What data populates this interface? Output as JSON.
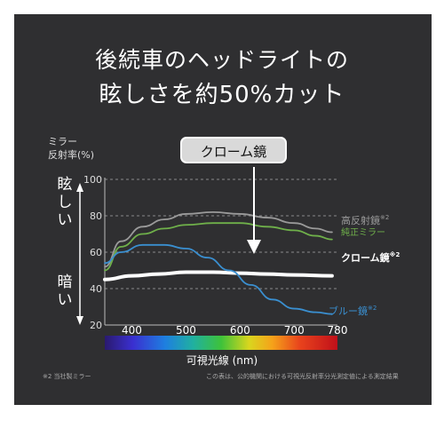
{
  "headline": {
    "line1": "後続車のヘッドライトの",
    "line2": "眩しさを約50%カット"
  },
  "side_labels": {
    "top": "眩しい",
    "bottom": "暗い"
  },
  "callout": "クローム鏡",
  "footnotes": {
    "left": "※2 当社製ミラー",
    "right": "この表は、公的機関における可視光反射率分光測定値による測定結果"
  },
  "colors": {
    "background": "#2f2f31",
    "kouhansha": "#9a9a9a",
    "junsei": "#6fb04a",
    "chrome": "#ffffff",
    "blue": "#3a8fd0"
  },
  "chart_data": {
    "type": "line",
    "title": "",
    "ylabel": "ミラー\n反射率(%)",
    "xlabel": "可視光線 (nm)",
    "xlim": [
      350,
      780
    ],
    "ylim": [
      20,
      100
    ],
    "x_ticks": [
      "400",
      "500",
      "600",
      "700",
      "780"
    ],
    "y_ticks": [
      "100",
      "80",
      "60",
      "40",
      "20"
    ],
    "grid": true,
    "series": [
      {
        "name": "高反射鏡",
        "note": "※2",
        "color": "#9a9a9a",
        "x": [
          350,
          380,
          420,
          460,
          500,
          550,
          600,
          650,
          700,
          740,
          770
        ],
        "y": [
          52,
          66,
          74,
          78,
          81,
          82,
          81,
          79,
          76,
          73,
          71
        ]
      },
      {
        "name": "純正ミラー",
        "note": "",
        "color": "#6fb04a",
        "x": [
          350,
          380,
          420,
          460,
          500,
          550,
          600,
          650,
          700,
          740,
          770
        ],
        "y": [
          50,
          63,
          70,
          73,
          75,
          76,
          76,
          74,
          72,
          69,
          67
        ]
      },
      {
        "name": "クローム鏡",
        "note": "※2",
        "color": "#ffffff",
        "x": [
          350,
          400,
          450,
          500,
          550,
          600,
          650,
          700,
          770
        ],
        "y": [
          45,
          47,
          48,
          49,
          49,
          48.5,
          48,
          47.5,
          47
        ]
      },
      {
        "name": "ブルー鏡",
        "note": "※2",
        "color": "#3a8fd0",
        "x": [
          350,
          380,
          420,
          460,
          500,
          540,
          580,
          620,
          660,
          700,
          740,
          770
        ],
        "y": [
          54,
          60,
          64,
          64,
          62,
          57,
          50,
          42,
          34,
          29,
          27,
          26
        ]
      }
    ]
  }
}
